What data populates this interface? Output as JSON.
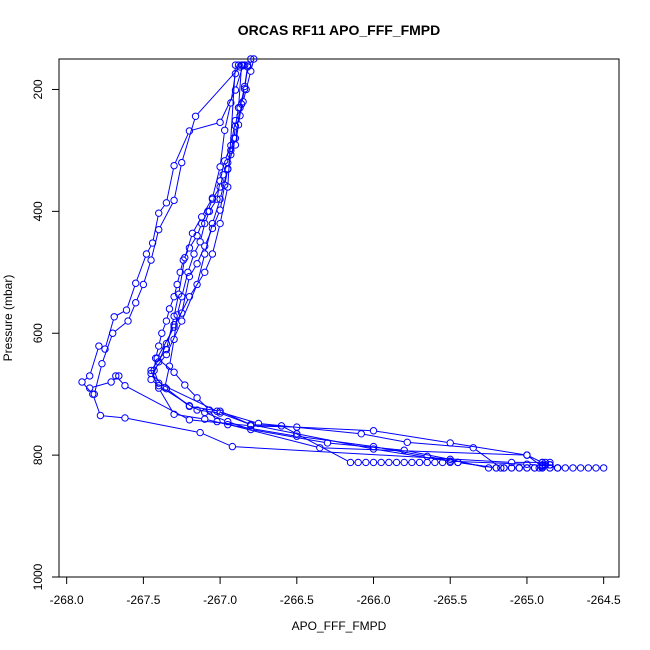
{
  "chart_data": {
    "type": "scatter",
    "title": "ORCAS RF11 APO_FFF_FMPD",
    "xlabel": "APO_FFF_FMPD",
    "ylabel": "Pressure (mbar)",
    "xlim": [
      -268.05,
      -264.4
    ],
    "ylim": [
      150,
      1000
    ],
    "y_reversed": true,
    "grid": false,
    "xticks": [
      -268.0,
      -267.5,
      -267.0,
      -266.5,
      -266.0,
      -265.5,
      -265.0,
      -264.5
    ],
    "xtick_labels": [
      "-268.0",
      "-267.5",
      "-267.0",
      "-266.5",
      "-266.0",
      "-265.5",
      "-265.0",
      "-264.5"
    ],
    "yticks": [
      200,
      400,
      600,
      800,
      1000
    ],
    "ytick_labels": [
      "200",
      "400",
      "600",
      "800",
      "1000"
    ],
    "color": "#0000ff",
    "marker": "open-circle",
    "series": [
      {
        "x": [
          -264.5,
          -264.55,
          -264.6,
          -264.65,
          -264.7,
          -264.75,
          -264.8,
          -264.85,
          -264.9,
          -264.95,
          -265.0,
          -265.05,
          -265.1,
          -265.15,
          -265.2,
          -265.45,
          -265.5,
          -265.55,
          -265.6,
          -265.65,
          -265.7,
          -265.75,
          -265.8,
          -265.85,
          -265.9,
          -265.95,
          -266.0,
          -266.05,
          -266.1,
          -266.15,
          -266.6,
          -266.8,
          -267.0,
          -267.15,
          -267.4,
          -267.45,
          -267.4,
          -267.35,
          -267.3,
          -267.25,
          -267.2,
          -267.15,
          -267.1,
          -267.05,
          -267.0,
          -266.97,
          -266.95,
          -266.93,
          -266.9,
          -266.88,
          -266.86,
          -266.84,
          -266.82,
          -266.8
        ],
        "y": [
          821,
          821,
          821,
          821,
          821,
          821,
          821,
          821,
          821,
          821,
          821,
          821,
          821,
          821,
          821,
          812,
          812,
          812,
          812,
          812,
          812,
          812,
          812,
          812,
          812,
          812,
          812,
          812,
          812,
          812,
          752,
          750,
          731,
          726,
          686,
          676,
          647,
          617,
          586,
          567,
          507,
          486,
          457,
          428,
          398,
          357,
          331,
          307,
          291,
          258,
          224,
          199,
          163,
          150
        ]
      },
      {
        "x": [
          -264.9,
          -264.88,
          -264.9,
          -264.92,
          -264.95,
          -265.0,
          -265.05,
          -265.1,
          -265.15,
          -265.17,
          -265.35,
          -265.78,
          -266.08,
          -266.75,
          -267.02,
          -267.4,
          -267.43,
          -267.42,
          -267.4,
          -267.38,
          -267.35,
          -267.33,
          -267.3,
          -267.28,
          -267.26,
          -267.24,
          -267.2,
          -267.15,
          -267.12,
          -267.08,
          -267.05,
          -267.0,
          -266.98,
          -266.95,
          -266.93,
          -266.91,
          -266.9,
          -266.88,
          -266.86
        ],
        "y": [
          821,
          812,
          816,
          821,
          821,
          821,
          821,
          821,
          821,
          821,
          788,
          779,
          765,
          748,
          728,
          682,
          661,
          641,
          621,
          600,
          580,
          560,
          540,
          520,
          500,
          480,
          460,
          440,
          420,
          400,
          380,
          360,
          340,
          320,
          300,
          280,
          260,
          230,
          160
        ]
      },
      {
        "x": [
          -264.85,
          -264.88,
          -264.9,
          -265.0,
          -266.35,
          -267.02,
          -267.07,
          -267.15,
          -267.23,
          -267.3,
          -267.41,
          -267.3,
          -267.2,
          -267.1,
          -267.05,
          -267.0,
          -266.95,
          -266.9
        ],
        "y": [
          812,
          816,
          819,
          800,
          788,
          745,
          726,
          706,
          685,
          664,
          641,
          590,
          540,
          500,
          470,
          420,
          360,
          160
        ]
      },
      {
        "x": [
          -265.25,
          -265.5,
          -265.8,
          -266.3,
          -266.8,
          -266.95,
          -267.1,
          -267.2,
          -267.35,
          -267.45,
          -267.35,
          -267.25,
          -267.15,
          -267.1,
          -267.05,
          -267.0,
          -266.95,
          -266.9,
          -266.87,
          -266.84,
          -266.82
        ],
        "y": [
          821,
          807,
          792,
          780,
          758,
          745,
          730,
          719,
          691,
          666,
          635,
          580,
          520,
          470,
          420,
          380,
          330,
          280,
          230,
          195,
          160
        ]
      },
      {
        "x": [
          -265.2,
          -265.45,
          -265.65,
          -266.0,
          -266.5,
          -266.95,
          -267.1,
          -267.3,
          -267.4,
          -267.45,
          -267.35,
          -267.3,
          -267.27,
          -267.23,
          -267.18,
          -267.12,
          -267.05,
          -267.0,
          -266.97,
          -266.93,
          -266.9,
          -266.88
        ],
        "y": [
          821,
          812,
          802,
          786,
          769,
          750,
          741,
          733,
          690,
          661,
          627,
          572,
          536,
          476,
          436,
          409,
          378,
          327,
          267,
          222,
          174,
          160
        ]
      },
      {
        "x": [
          -264.8,
          -264.85,
          -264.9,
          -265.1,
          -266.92,
          -267.13,
          -267.62,
          -267.78,
          -267.83,
          -267.9,
          -267.85,
          -267.79,
          -267.75,
          -267.69,
          -267.61,
          -267.55,
          -267.48,
          -267.44,
          -267.4,
          -267.35,
          -267.3,
          -267.2,
          -267.0,
          -266.9,
          -266.85
        ],
        "y": [
          821,
          816,
          812,
          812,
          786,
          763,
          739,
          735,
          700,
          680,
          670,
          621,
          626,
          573,
          562,
          518,
          470,
          452,
          403,
          386,
          325,
          268,
          254,
          201,
          160
        ]
      },
      {
        "x": [
          -264.8,
          -264.85,
          -264.9,
          -265.0,
          -265.5,
          -266.0,
          -266.5,
          -266.8,
          -267.2,
          -267.62,
          -267.68,
          -267.66,
          -267.71,
          -267.85,
          -267.82,
          -267.77,
          -267.7,
          -267.6,
          -267.55,
          -267.5,
          -267.45,
          -267.4,
          -267.3,
          -267.25,
          -267.16,
          -266.87,
          -266.85,
          -266.84
        ],
        "y": [
          821,
          816,
          812,
          800,
          780,
          760,
          754,
          752,
          742,
          686,
          670,
          670,
          680,
          690,
          700,
          650,
          600,
          580,
          550,
          520,
          480,
          430,
          382,
          320,
          244,
          163,
          161,
          160
        ]
      },
      {
        "x": [
          -264.85,
          -264.9,
          -265.0,
          -265.5,
          -266.0,
          -266.5,
          -266.8,
          -267.0,
          -267.2,
          -267.36,
          -267.33,
          -267.3,
          -267.28,
          -267.25,
          -267.21,
          -267.17,
          -267.13,
          -267.1,
          -267.07,
          -267.02,
          -267.0,
          -266.97,
          -266.93,
          -266.9,
          -266.87,
          -266.85,
          -266.83,
          -266.8,
          -266.78
        ],
        "y": [
          821,
          817,
          815,
          810,
          790,
          765,
          750,
          728,
          720,
          689,
          654,
          610,
          570,
          540,
          500,
          470,
          450,
          420,
          400,
          380,
          350,
          317,
          292,
          251,
          243,
          220,
          200,
          170,
          150
        ]
      }
    ]
  }
}
